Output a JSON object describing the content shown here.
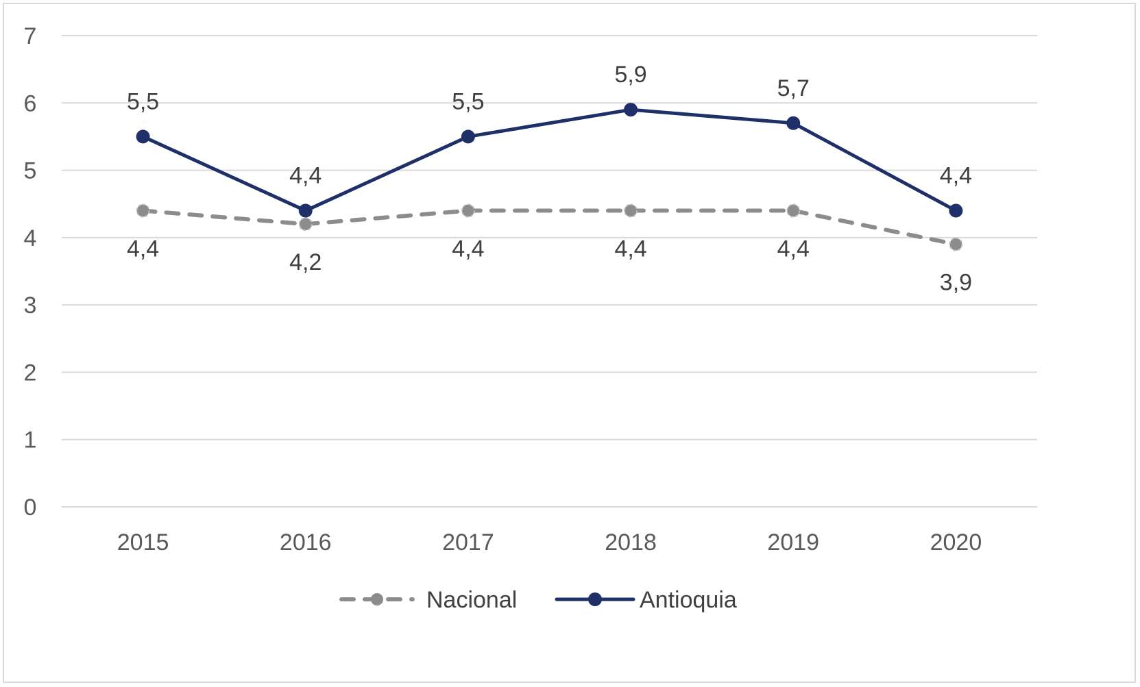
{
  "chart_data": {
    "type": "line",
    "title": "",
    "xlabel": "",
    "ylabel": "",
    "categories": [
      "2015",
      "2016",
      "2017",
      "2018",
      "2019",
      "2020"
    ],
    "ylim": [
      0,
      7
    ],
    "yticks": [
      "0",
      "1",
      "2",
      "3",
      "4",
      "5",
      "6",
      "7"
    ],
    "grid": "horizontal",
    "legend_position": "bottom",
    "series": [
      {
        "name": "Nacional",
        "values": [
          4.4,
          4.2,
          4.4,
          4.4,
          4.4,
          3.9
        ],
        "labels": [
          "4,4",
          "4,2",
          "4,4",
          "4,4",
          "4,4",
          "3,9"
        ],
        "color": "#8c8c8c",
        "line_style": "dashed",
        "label_position": "below"
      },
      {
        "name": "Antioquia",
        "values": [
          5.5,
          4.4,
          5.5,
          5.9,
          5.7,
          4.4
        ],
        "labels": [
          "5,5",
          "4,4",
          "5,5",
          "5,9",
          "5,7",
          "4,4"
        ],
        "color": "#1f3068",
        "line_style": "solid",
        "label_position": "above"
      }
    ]
  }
}
